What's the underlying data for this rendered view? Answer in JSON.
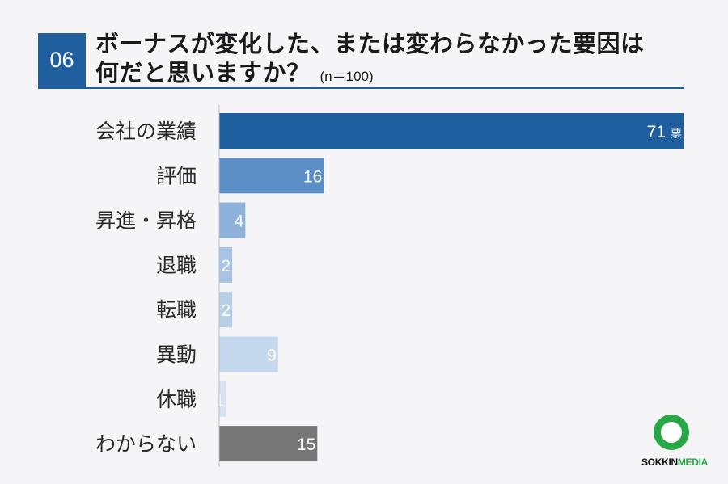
{
  "header": {
    "number": "06",
    "title_line1": "ボーナスが変化した、または変わらなかった要因は",
    "title_line2": "何だと思いますか？",
    "sample": "(n＝100)"
  },
  "chart_data": {
    "type": "bar",
    "orientation": "horizontal",
    "categories": [
      "会社の業績",
      "評価",
      "昇進・昇格",
      "退職",
      "転職",
      "異動",
      "休職",
      "わからない"
    ],
    "values": [
      71,
      16,
      4,
      2,
      2,
      9,
      1,
      15
    ],
    "value_labels": [
      "71",
      "16",
      "4",
      "2",
      "2",
      "9",
      "1",
      "15"
    ],
    "unit": "票",
    "bar_colors": [
      "#1f5fa0",
      "#5a8ec5",
      "#8fb2da",
      "#a9c3e2",
      "#b8cfe8",
      "#c6d8ee",
      "#d6e3f3",
      "#767676"
    ],
    "grid": false,
    "legend": "none"
  },
  "logo": {
    "text_dark": "SOKKIN",
    "text_green": "MEDIA",
    "colors": {
      "ring": "#28a745"
    }
  }
}
